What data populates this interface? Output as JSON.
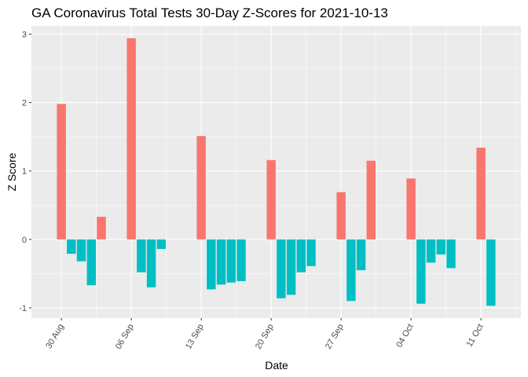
{
  "chart_data": {
    "type": "bar",
    "title": "GA Coronavirus Total Tests 30-Day Z-Scores for 2021-10-13",
    "xlabel": "Date",
    "ylabel": "Z Score",
    "x": [
      "2021-08-30",
      "2021-08-31",
      "2021-09-01",
      "2021-09-02",
      "2021-09-03",
      "2021-09-04",
      "2021-09-05",
      "2021-09-06",
      "2021-09-07",
      "2021-09-08",
      "2021-09-09",
      "2021-09-10",
      "2021-09-11",
      "2021-09-12",
      "2021-09-13",
      "2021-09-14",
      "2021-09-15",
      "2021-09-16",
      "2021-09-17",
      "2021-09-18",
      "2021-09-19",
      "2021-09-20",
      "2021-09-21",
      "2021-09-22",
      "2021-09-23",
      "2021-09-24",
      "2021-09-25",
      "2021-09-26",
      "2021-09-27",
      "2021-09-28",
      "2021-09-29",
      "2021-09-30",
      "2021-10-01",
      "2021-10-02",
      "2021-10-03",
      "2021-10-04",
      "2021-10-05",
      "2021-10-06",
      "2021-10-07",
      "2021-10-08",
      "2021-10-09",
      "2021-10-10",
      "2021-10-11",
      "2021-10-12"
    ],
    "values": [
      1.98,
      -0.21,
      -0.32,
      -0.67,
      0.33,
      null,
      null,
      2.94,
      -0.48,
      -0.7,
      -0.14,
      null,
      null,
      null,
      1.51,
      -0.73,
      -0.66,
      -0.63,
      -0.61,
      null,
      null,
      1.16,
      -0.86,
      -0.81,
      -0.48,
      -0.39,
      null,
      null,
      0.69,
      -0.9,
      -0.45,
      1.15,
      null,
      null,
      null,
      0.89,
      -0.94,
      -0.34,
      -0.22,
      -0.42,
      null,
      null,
      1.34,
      -0.97
    ],
    "positive_color": "#F8766D",
    "negative_color": "#00BFC4",
    "x_ticks": [
      {
        "date": "2021-08-30",
        "label": "30 Aug"
      },
      {
        "date": "2021-09-06",
        "label": "06 Sep"
      },
      {
        "date": "2021-09-13",
        "label": "13 Sep"
      },
      {
        "date": "2021-09-20",
        "label": "20 Sep"
      },
      {
        "date": "2021-09-27",
        "label": "27 Sep"
      },
      {
        "date": "2021-10-04",
        "label": "04 Oct"
      },
      {
        "date": "2021-10-11",
        "label": "11 Oct"
      }
    ],
    "y_ticks": [
      -1,
      0,
      1,
      2,
      3
    ],
    "ylim": [
      -1.15,
      3.12
    ],
    "xlim": [
      "2021-08-27",
      "2021-10-15"
    ],
    "grid": true,
    "legend": "none",
    "panel_color": "#EBEBEB",
    "grid_color": "#FFFFFF"
  }
}
